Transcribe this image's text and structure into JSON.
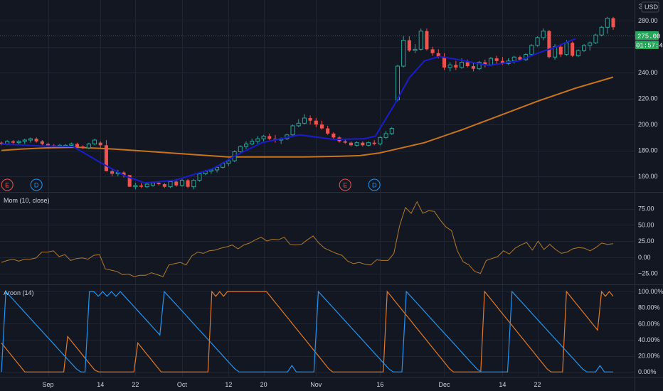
{
  "colors": {
    "background": "#131722",
    "grid": "#1f2533",
    "up": "#26a69a",
    "down": "#ef5350",
    "ma_fast": "#1c1ccf",
    "ma_slow": "#c9741d",
    "momentum": "#b07a2c",
    "aroon_up": "#e07a2a",
    "aroon_down": "#2196f3",
    "price_tag": "#26a65a"
  },
  "header": {
    "currency": "USD",
    "top_tick": "3"
  },
  "price_tags": {
    "last_price": "275.00",
    "countdown": "01:57:45"
  },
  "x_axis": {
    "labels": [
      {
        "text": "Sep",
        "idx": 8
      },
      {
        "text": "14",
        "idx": 17
      },
      {
        "text": "22",
        "idx": 23
      },
      {
        "text": "Oct",
        "idx": 31
      },
      {
        "text": "12",
        "idx": 39
      },
      {
        "text": "20",
        "idx": 45
      },
      {
        "text": "Nov",
        "idx": 54
      },
      {
        "text": "16",
        "idx": 65
      },
      {
        "text": "Dec",
        "idx": 76
      },
      {
        "text": "14",
        "idx": 86
      },
      {
        "text": "22",
        "idx": 92
      }
    ]
  },
  "event_markers": [
    {
      "letter": "E",
      "idx": 1,
      "color": "#ef5350"
    },
    {
      "letter": "D",
      "idx": 6,
      "color": "#2196f3"
    },
    {
      "letter": "E",
      "idx": 59,
      "color": "#ef5350"
    },
    {
      "letter": "D",
      "idx": 64,
      "color": "#2196f3"
    }
  ],
  "chart_data": [
    {
      "type": "candlestick",
      "title": "",
      "y_ticks": [
        "280.00",
        "260.00",
        "240.00",
        "220.00",
        "200.00",
        "180.00",
        "160.00"
      ],
      "ylim": [
        148,
        296
      ],
      "candles": [
        [
          186,
          187,
          184,
          185
        ],
        [
          185,
          188,
          184,
          187
        ],
        [
          187,
          188,
          185,
          186
        ],
        [
          186,
          188,
          184,
          187
        ],
        [
          187,
          189,
          185,
          188
        ],
        [
          188,
          190,
          186,
          189
        ],
        [
          189,
          190,
          186,
          187
        ],
        [
          187,
          188,
          184,
          185
        ],
        [
          185,
          186,
          183,
          184
        ],
        [
          184,
          185,
          182,
          183
        ],
        [
          183,
          185,
          182,
          184
        ],
        [
          183,
          185,
          182,
          184
        ],
        [
          184,
          186,
          183,
          185
        ],
        [
          185,
          186,
          182,
          183
        ],
        [
          183,
          184,
          181,
          182
        ],
        [
          182,
          186,
          181,
          185
        ],
        [
          185,
          189,
          184,
          188
        ],
        [
          186,
          187,
          182,
          184
        ],
        [
          184,
          188,
          164,
          164
        ],
        [
          164,
          166,
          160,
          162
        ],
        [
          162,
          165,
          160,
          163
        ],
        [
          163,
          164,
          159,
          161
        ],
        [
          161,
          161,
          152,
          152
        ],
        [
          152,
          155,
          150,
          153
        ],
        [
          153,
          155,
          151,
          152
        ],
        [
          152,
          155,
          151,
          154
        ],
        [
          153,
          156,
          152,
          155
        ],
        [
          155,
          156,
          153,
          154
        ],
        [
          154,
          155,
          151,
          152
        ],
        [
          152,
          157,
          151,
          156
        ],
        [
          156,
          158,
          152,
          153
        ],
        [
          153,
          158,
          152,
          157
        ],
        [
          157,
          158,
          151,
          152
        ],
        [
          152,
          158,
          150,
          157
        ],
        [
          157,
          163,
          156,
          162
        ],
        [
          162,
          165,
          161,
          164
        ],
        [
          164,
          166,
          162,
          165
        ],
        [
          165,
          168,
          163,
          167
        ],
        [
          167,
          171,
          166,
          170
        ],
        [
          170,
          174,
          168,
          172
        ],
        [
          172,
          180,
          171,
          179
        ],
        [
          179,
          184,
          178,
          183
        ],
        [
          183,
          187,
          181,
          185
        ],
        [
          185,
          189,
          184,
          187
        ],
        [
          187,
          191,
          185,
          189
        ],
        [
          189,
          192,
          187,
          191
        ],
        [
          191,
          193,
          188,
          189
        ],
        [
          189,
          192,
          186,
          188
        ],
        [
          188,
          190,
          185,
          189
        ],
        [
          189,
          193,
          188,
          192
        ],
        [
          192,
          200,
          191,
          199
        ],
        [
          199,
          204,
          198,
          201
        ],
        [
          201,
          208,
          200,
          205
        ],
        [
          205,
          207,
          200,
          203
        ],
        [
          203,
          205,
          198,
          200
        ],
        [
          200,
          203,
          196,
          197
        ],
        [
          197,
          199,
          192,
          193
        ],
        [
          193,
          194,
          188,
          190
        ],
        [
          190,
          191,
          186,
          187
        ],
        [
          187,
          189,
          185,
          186
        ],
        [
          186,
          187,
          183,
          184
        ],
        [
          184,
          187,
          183,
          186
        ],
        [
          186,
          187,
          183,
          184
        ],
        [
          184,
          187,
          183,
          186
        ],
        [
          186,
          188,
          184,
          185
        ],
        [
          185,
          191,
          184,
          190
        ],
        [
          190,
          195,
          189,
          193
        ],
        [
          193,
          198,
          192,
          197
        ],
        [
          219,
          246,
          218,
          245
        ],
        [
          245,
          268,
          244,
          265
        ],
        [
          265,
          268,
          256,
          257
        ],
        [
          257,
          262,
          255,
          258
        ],
        [
          258,
          274,
          257,
          272
        ],
        [
          272,
          274,
          257,
          258
        ],
        [
          258,
          260,
          253,
          255
        ],
        [
          255,
          258,
          251,
          252
        ],
        [
          252,
          255,
          242,
          244
        ],
        [
          244,
          248,
          241,
          246
        ],
        [
          246,
          249,
          242,
          244
        ],
        [
          244,
          251,
          243,
          248
        ],
        [
          248,
          250,
          244,
          245
        ],
        [
          245,
          248,
          241,
          243
        ],
        [
          243,
          249,
          242,
          248
        ],
        [
          248,
          250,
          244,
          246
        ],
        [
          246,
          252,
          245,
          251
        ],
        [
          251,
          253,
          247,
          249
        ],
        [
          249,
          252,
          246,
          247
        ],
        [
          247,
          251,
          246,
          249
        ],
        [
          249,
          253,
          247,
          252
        ],
        [
          252,
          253,
          249,
          250
        ],
        [
          250,
          255,
          249,
          254
        ],
        [
          254,
          262,
          253,
          261
        ],
        [
          261,
          268,
          260,
          267
        ],
        [
          267,
          274,
          265,
          272
        ],
        [
          272,
          273,
          251,
          252
        ],
        [
          252,
          262,
          250,
          260
        ],
        [
          260,
          262,
          252,
          254
        ],
        [
          254,
          265,
          253,
          263
        ],
        [
          263,
          264,
          252,
          253
        ],
        [
          253,
          258,
          252,
          257
        ],
        [
          257,
          262,
          256,
          261
        ],
        [
          261,
          264,
          257,
          263
        ],
        [
          263,
          270,
          262,
          269
        ],
        [
          269,
          276,
          268,
          275
        ],
        [
          275,
          283,
          270,
          282
        ],
        [
          282,
          283,
          273,
          275
        ]
      ],
      "ma_fast": [
        [
          0,
          185
        ],
        [
          10,
          183.5
        ],
        [
          19,
          183
        ],
        [
          26,
          171
        ],
        [
          33,
          160
        ],
        [
          38,
          155
        ],
        [
          46,
          157
        ],
        [
          56,
          166
        ],
        [
          62,
          176
        ],
        [
          69,
          186
        ],
        [
          79,
          192
        ],
        [
          88,
          188.5
        ],
        [
          96,
          189
        ],
        [
          99,
          191
        ],
        [
          104,
          215
        ],
        [
          108,
          236
        ],
        [
          112,
          249
        ],
        [
          116,
          252.5
        ],
        [
          121,
          250
        ],
        [
          129,
          245.5
        ],
        [
          137,
          249
        ],
        [
          142,
          255
        ],
        [
          147,
          260
        ],
        [
          150,
          264
        ],
        [
          152,
          266
        ]
      ],
      "ma_slow": [
        [
          0,
          180
        ],
        [
          5,
          181
        ],
        [
          12,
          182
        ],
        [
          20,
          182.5
        ],
        [
          30,
          181
        ],
        [
          40,
          179
        ],
        [
          50,
          177
        ],
        [
          60,
          175
        ],
        [
          70,
          175
        ],
        [
          80,
          175
        ],
        [
          90,
          175.5
        ],
        [
          95,
          176
        ],
        [
          100,
          178
        ],
        [
          112,
          186
        ],
        [
          122,
          196
        ],
        [
          132,
          207
        ],
        [
          142,
          218
        ],
        [
          152,
          228
        ],
        [
          162,
          236.5
        ]
      ]
    },
    {
      "type": "line",
      "title": "Mom (10, close)",
      "y_ticks": [
        "75.00",
        "50.00",
        "25.00",
        "0.00",
        "−25.00"
      ],
      "ylim": [
        -42,
        100
      ],
      "values": [
        -8,
        -5,
        -3,
        -6,
        -3,
        -3,
        -1,
        8,
        8,
        10,
        1,
        4,
        -5,
        -2,
        -1,
        -3,
        3,
        4,
        -18,
        -20,
        -22,
        -27,
        -26,
        -30,
        -28,
        -28,
        -24,
        -27,
        -30,
        -12,
        -10,
        -8,
        -12,
        2,
        8,
        6,
        10,
        11,
        14,
        16,
        19,
        13,
        19,
        22,
        27,
        31,
        25,
        28,
        27,
        31,
        20,
        19,
        20,
        27,
        33,
        22,
        14,
        10,
        6,
        3,
        -6,
        -10,
        -8,
        -11,
        -12,
        -4,
        -5,
        -5,
        6,
        49,
        77,
        68,
        86,
        68,
        72,
        71,
        58,
        47,
        41,
        10,
        -7,
        -12,
        -22,
        -25,
        -5,
        -2,
        1,
        10,
        5,
        14,
        19,
        23,
        11,
        25,
        12,
        20,
        12,
        6,
        8,
        13,
        15,
        14,
        10,
        15,
        22,
        20,
        21
      ]
    },
    {
      "type": "line",
      "title": "Aroon (14)",
      "y_ticks": [
        "100.00%",
        "80.00%",
        "60.00%",
        "40.00%",
        "20.00%",
        "0.00%"
      ],
      "ylim": [
        -6,
        108
      ],
      "series": [
        {
          "name": "aroon_up",
          "values": [
            36,
            30,
            24,
            18,
            12,
            6,
            0,
            0,
            0,
            0,
            0,
            0,
            0,
            0,
            0,
            0,
            0,
            44,
            38,
            32,
            26,
            20,
            14,
            8,
            2,
            0,
            0,
            0,
            0,
            0,
            0,
            0,
            0,
            0,
            0,
            36,
            30,
            24,
            18,
            12,
            6,
            0,
            0,
            0,
            0,
            0,
            0,
            0,
            0,
            0,
            0,
            0,
            0,
            0,
            100,
            94,
            100,
            94,
            100,
            100,
            100,
            100,
            100,
            100,
            100,
            100,
            100,
            100,
            100,
            94,
            88,
            82,
            76,
            70,
            64,
            58,
            52,
            46,
            40,
            34,
            28,
            22,
            16,
            10,
            4,
            0,
            0,
            0,
            0,
            0,
            0,
            0,
            0,
            0,
            0,
            0,
            0,
            0,
            0,
            100,
            94,
            88,
            82,
            76,
            70,
            64,
            58,
            52,
            46,
            40,
            34,
            28,
            22,
            16,
            10,
            4,
            0,
            0,
            0,
            0,
            0,
            0,
            0,
            0,
            100,
            94,
            88,
            82,
            76,
            70,
            64,
            58,
            52,
            46,
            40,
            34,
            28,
            22,
            16,
            10,
            4,
            0,
            0,
            0,
            0,
            100,
            94,
            88,
            82,
            76,
            70,
            64,
            58,
            52,
            100,
            94,
            100,
            94
          ]
        },
        {
          "name": "aroon_down",
          "values": [
            0,
            100,
            94,
            88,
            82,
            76,
            70,
            64,
            58,
            52,
            46,
            40,
            34,
            28,
            22,
            16,
            10,
            4,
            0,
            0,
            100,
            100,
            94,
            100,
            94,
            100,
            94,
            100,
            94,
            88,
            82,
            76,
            70,
            64,
            58,
            52,
            46,
            100,
            94,
            88,
            82,
            76,
            70,
            64,
            58,
            52,
            46,
            40,
            34,
            28,
            22,
            16,
            10,
            4,
            0,
            0,
            0,
            0,
            0,
            0,
            0,
            0,
            0,
            0,
            0,
            0,
            8,
            0,
            0,
            0,
            0,
            0,
            100,
            94,
            88,
            82,
            76,
            70,
            64,
            58,
            52,
            46,
            40,
            34,
            28,
            22,
            16,
            10,
            4,
            0,
            0,
            0,
            100,
            94,
            88,
            82,
            76,
            70,
            64,
            58,
            52,
            46,
            40,
            34,
            28,
            22,
            16,
            10,
            4,
            0,
            0,
            0,
            0,
            0,
            0,
            0,
            100,
            94,
            88,
            82,
            76,
            70,
            64,
            58,
            52,
            46,
            40,
            34,
            28,
            22,
            16,
            10,
            4,
            0,
            0,
            0,
            8,
            0,
            0,
            0
          ]
        }
      ]
    }
  ]
}
